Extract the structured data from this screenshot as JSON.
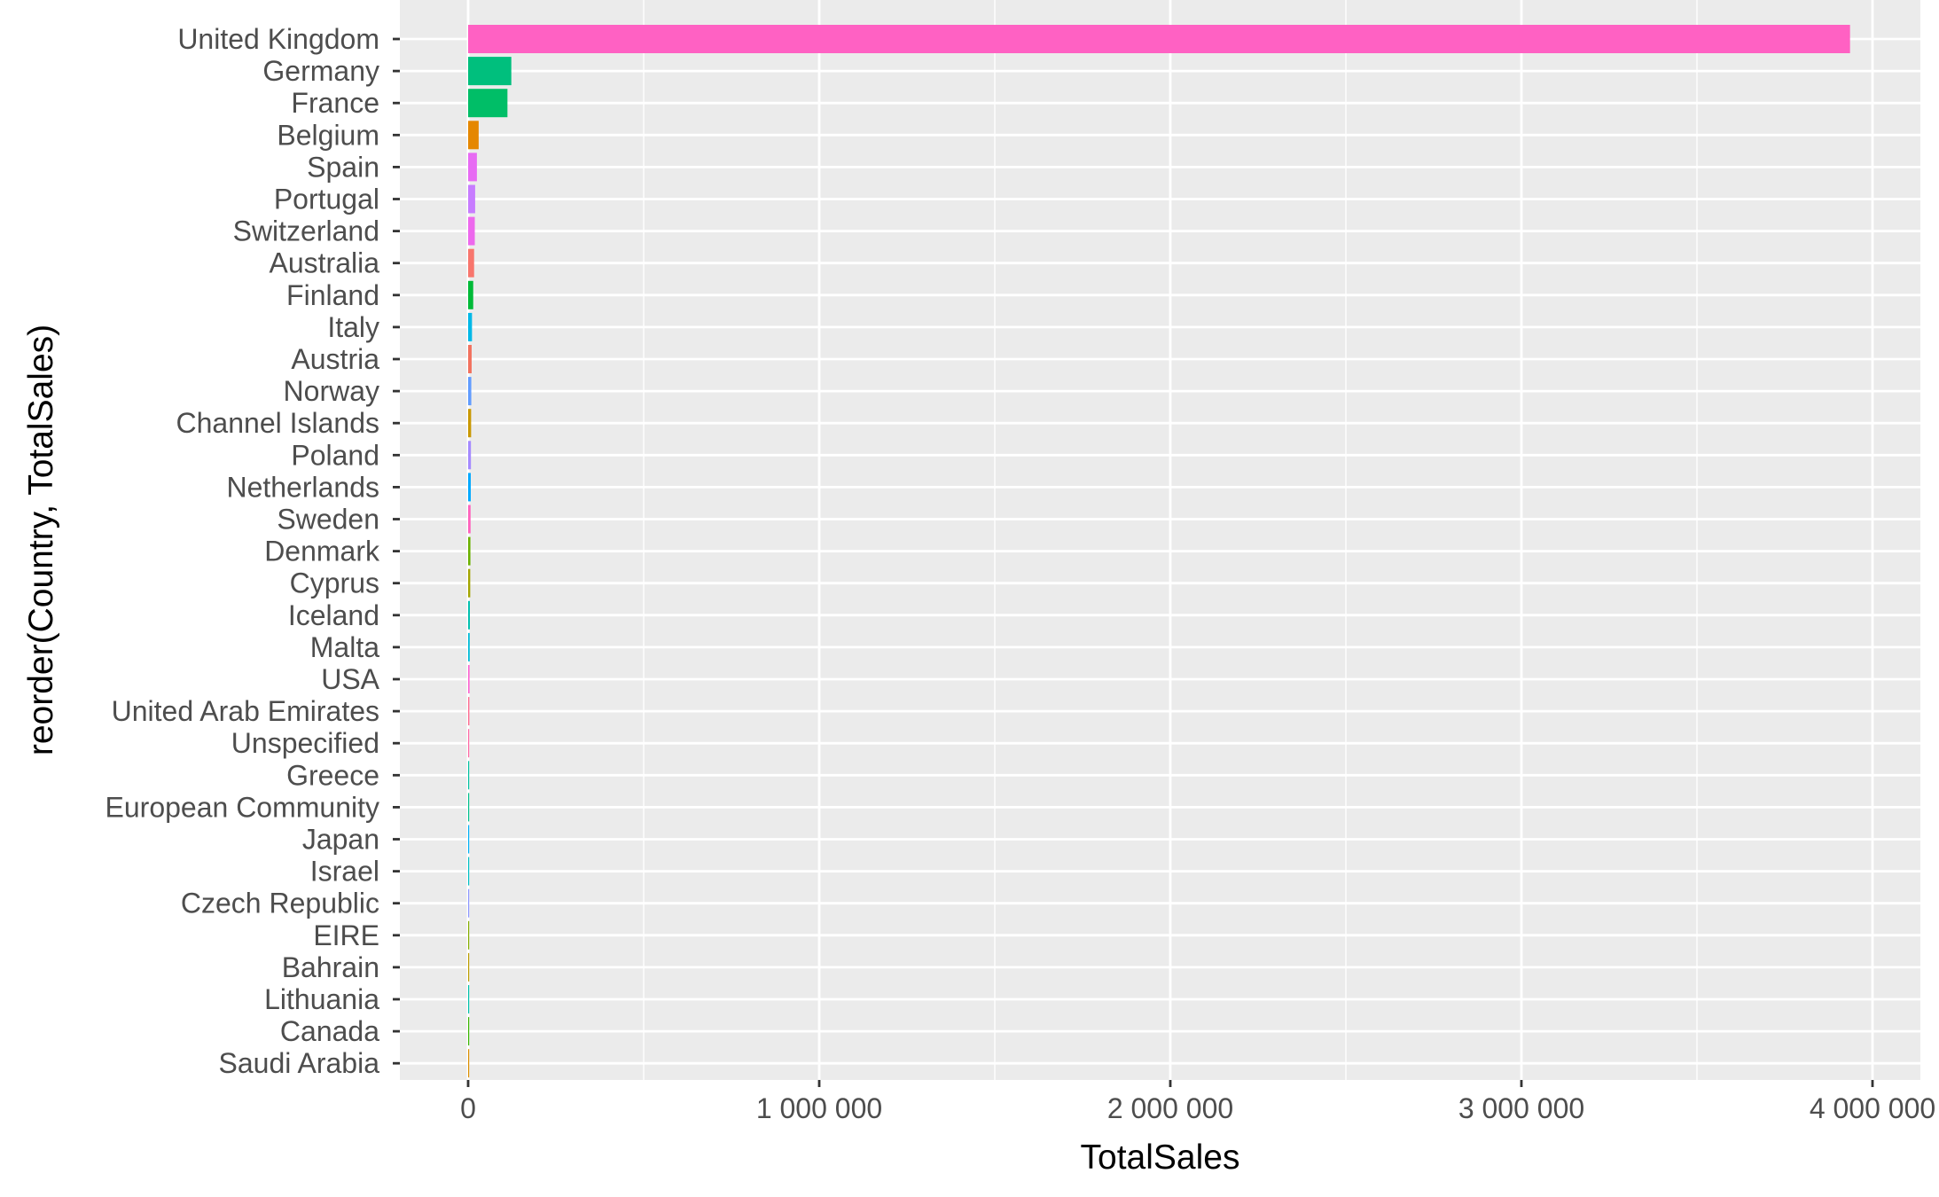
{
  "chart_data": {
    "type": "bar",
    "orientation": "horizontal",
    "xlabel": "TotalSales",
    "ylabel": "reorder(Country, TotalSales)",
    "xlim": [
      -190000,
      4120000
    ],
    "x_ticks": [
      0,
      1000000,
      2000000,
      3000000,
      4000000
    ],
    "x_tick_labels": [
      "0",
      "1 000 000",
      "2 000 000",
      "3 000 000",
      "4 000 000"
    ],
    "grid": true,
    "legend": "none",
    "categories": [
      "United Kingdom",
      "Germany",
      "France",
      "Belgium",
      "Spain",
      "Portugal",
      "Switzerland",
      "Australia",
      "Finland",
      "Italy",
      "Austria",
      "Norway",
      "Channel Islands",
      "Poland",
      "Netherlands",
      "Sweden",
      "Denmark",
      "Cyprus",
      "Iceland",
      "Malta",
      "USA",
      "United Arab Emirates",
      "Unspecified",
      "Greece",
      "European Community",
      "Japan",
      "Israel",
      "Czech Republic",
      "EIRE",
      "Bahrain",
      "Lithuania",
      "Canada",
      "Saudi Arabia"
    ],
    "values": [
      3936000,
      123000,
      112000,
      30000,
      25000,
      20000,
      19000,
      17000,
      14500,
      11000,
      10000,
      9000,
      8500,
      8000,
      7500,
      7000,
      6500,
      6000,
      5000,
      4500,
      4000,
      3500,
      3000,
      2500,
      2000,
      1800,
      1500,
      1300,
      1100,
      900,
      700,
      500,
      300
    ],
    "colors": [
      "#FF61C3",
      "#00BF7D",
      "#00BE67",
      "#E58700",
      "#E76BF3",
      "#C77CFF",
      "#ED68ED",
      "#F8766D",
      "#00BA38",
      "#00B8E7",
      "#F2725F",
      "#619CFF",
      "#C99800",
      "#A58AFF",
      "#00A9FF",
      "#FF62BC",
      "#6BB100",
      "#A3A500",
      "#00C0AF",
      "#00BCD8",
      "#FD61D1",
      "#FF6C91",
      "#FF67A4",
      "#00C1A0",
      "#00C08B",
      "#00B0F6",
      "#00BFC4",
      "#8D97FF",
      "#85AD00",
      "#BB9D00",
      "#00C1AA",
      "#39B600",
      "#DB8E00"
    ]
  }
}
